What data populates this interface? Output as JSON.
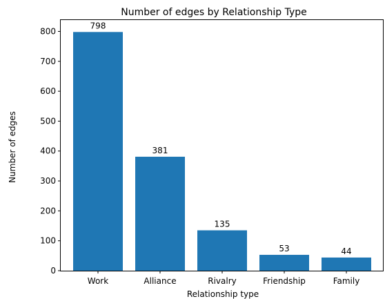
{
  "chart_data": {
    "type": "bar",
    "title": "Number of edges by Relationship Type",
    "xlabel": "Relationship type",
    "ylabel": "Number of edges",
    "categories": [
      "Work",
      "Alliance",
      "Rivalry",
      "Friendship",
      "Family"
    ],
    "values": [
      798,
      381,
      135,
      53,
      44
    ],
    "data_labels": [
      "798",
      "381",
      "135",
      "53",
      "44"
    ],
    "yticks": [
      0,
      100,
      200,
      300,
      400,
      500,
      600,
      700,
      800
    ],
    "ylim": [
      0,
      838
    ],
    "grid": false,
    "legend": "none",
    "bar_color": "#1f77b4"
  }
}
